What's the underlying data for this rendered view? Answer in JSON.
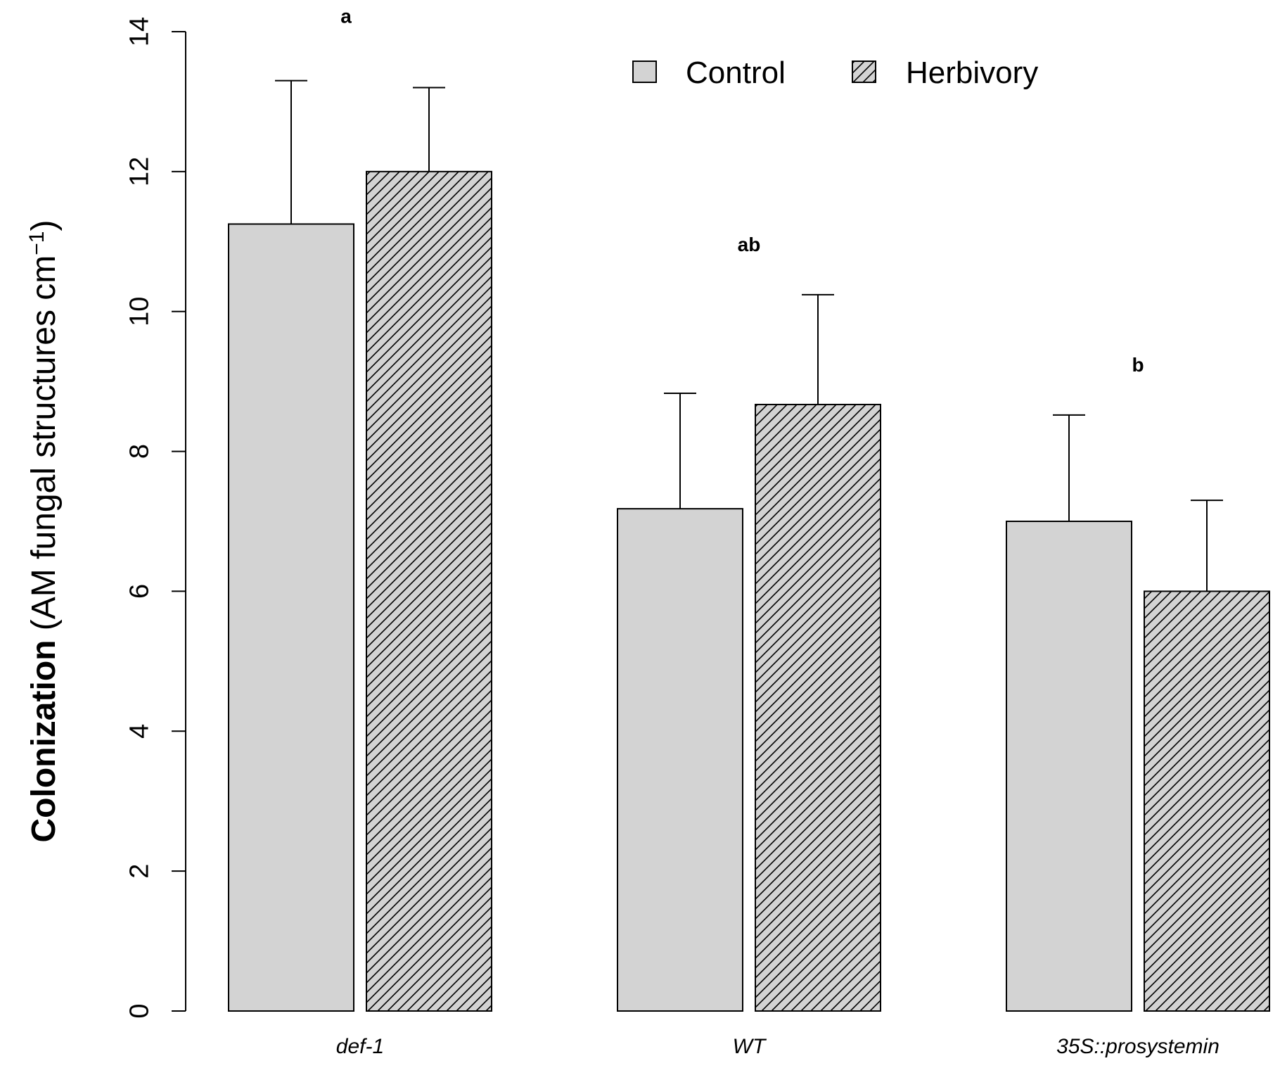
{
  "chart_data": {
    "type": "bar",
    "title": "",
    "xlabel": "",
    "ylabel": {
      "bold": "Colonization",
      "rest": " (AM fungal structures cm",
      "superscript": "−1",
      "close": ")"
    },
    "ylim": [
      0,
      14
    ],
    "yticks": [
      0,
      2,
      4,
      6,
      8,
      10,
      12,
      14
    ],
    "categories": [
      "def-1",
      "WT",
      "35S::prosystemin"
    ],
    "significance_letters": [
      "a",
      "ab",
      "b"
    ],
    "series": [
      {
        "name": "Control",
        "pattern": "solid",
        "values": [
          11.25,
          7.18,
          7.0
        ],
        "errors": [
          2.05,
          1.65,
          1.52
        ]
      },
      {
        "name": "Herbivory",
        "pattern": "hatched",
        "values": [
          12.0,
          8.67,
          6.0
        ],
        "errors": [
          1.2,
          1.57,
          1.3
        ]
      }
    ],
    "legend_position": "top-right",
    "colors": {
      "fill": "#d3d3d3",
      "stroke": "#000000",
      "hatch": "#000000"
    }
  }
}
